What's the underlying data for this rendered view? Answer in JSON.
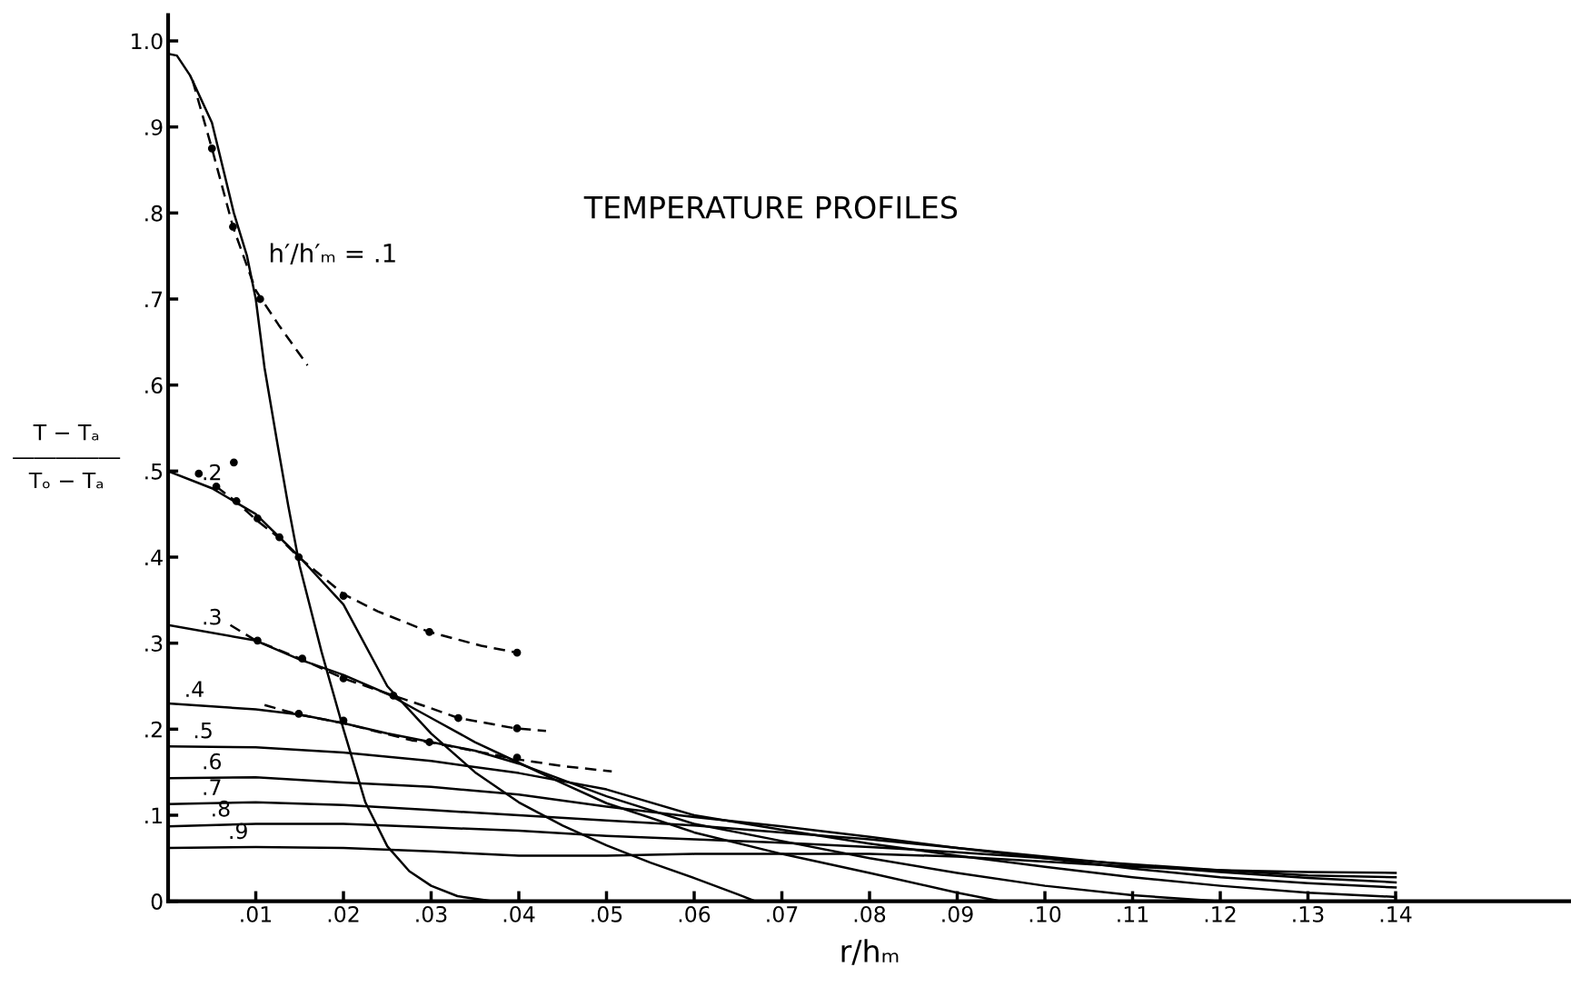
{
  "chart_data": {
    "type": "line",
    "title": "TEMPERATURE PROFILES",
    "xlabel": "r/hₘ",
    "ylabel": "T − Tₐ\n―――――\nTₒ − Tₐ",
    "xlim": [
      0,
      0.16
    ],
    "ylim": [
      0,
      1.03
    ],
    "xticks": [
      {
        "value": 0.01,
        "label": ".01"
      },
      {
        "value": 0.02,
        "label": ".02"
      },
      {
        "value": 0.03,
        "label": ".03"
      },
      {
        "value": 0.04,
        "label": ".04"
      },
      {
        "value": 0.05,
        "label": ".05"
      },
      {
        "value": 0.06,
        "label": ".06"
      },
      {
        "value": 0.07,
        "label": ".07"
      },
      {
        "value": 0.08,
        "label": ".08"
      },
      {
        "value": 0.09,
        "label": ".09"
      },
      {
        "value": 0.1,
        "label": ".10"
      },
      {
        "value": 0.11,
        "label": ".11"
      },
      {
        "value": 0.12,
        "label": ".12"
      },
      {
        "value": 0.13,
        "label": ".13"
      },
      {
        "value": 0.14,
        "label": ".14"
      }
    ],
    "yticks": [
      0,
      {
        "value": 0.1,
        "label": ".1"
      },
      {
        "value": 0.2,
        "label": ".2"
      },
      {
        "value": 0.3,
        "label": ".3"
      },
      {
        "value": 0.4,
        "label": ".4"
      },
      {
        "value": 0.5,
        "label": ".5"
      },
      {
        "value": 0.6,
        "label": ".6"
      },
      {
        "value": 0.7,
        "label": ".7"
      },
      {
        "value": 0.8,
        "label": ".8"
      },
      {
        "value": 0.9,
        "label": ".9"
      },
      {
        "value": 1.0,
        "label": "1.0"
      }
    ],
    "grid": false,
    "marker": "none",
    "line_style": "solid",
    "series": [
      {
        "color": "#000000",
        "x": [
          0,
          0.001,
          0.0025,
          0.005,
          0.0075,
          0.009,
          0.01,
          0.011,
          0.0125,
          0.0137,
          0.015,
          0.0175,
          0.02,
          0.0225,
          0.025,
          0.0275,
          0.03,
          0.033,
          0.037
        ],
        "values": [
          0.985,
          0.983,
          0.96,
          0.905,
          0.8,
          0.75,
          0.7,
          0.62,
          0.53,
          0.46,
          0.39,
          0.29,
          0.2,
          0.115,
          0.064,
          0.035,
          0.018,
          0.006,
          0
        ]
      },
      {
        "color": "#000000",
        "x": [
          0,
          0.005,
          0.01,
          0.015,
          0.02,
          0.025,
          0.03,
          0.035,
          0.04,
          0.045,
          0.05,
          0.055,
          0.06,
          0.065,
          0.067
        ],
        "values": [
          0.5,
          0.48,
          0.45,
          0.4,
          0.345,
          0.25,
          0.195,
          0.15,
          0.115,
          0.088,
          0.065,
          0.045,
          0.027,
          0.008,
          0
        ]
      },
      {
        "color": "#000000",
        "x": [
          0,
          0.01,
          0.015,
          0.02,
          0.025,
          0.03,
          0.035,
          0.04,
          0.045,
          0.05,
          0.06,
          0.07,
          0.08,
          0.09,
          0.095
        ],
        "values": [
          0.321,
          0.303,
          0.281,
          0.263,
          0.241,
          0.213,
          0.185,
          0.161,
          0.137,
          0.114,
          0.08,
          0.055,
          0.033,
          0.01,
          0
        ]
      },
      {
        "color": "#000000",
        "x": [
          0,
          0.01,
          0.015,
          0.02,
          0.025,
          0.03,
          0.035,
          0.04,
          0.045,
          0.05,
          0.06,
          0.07,
          0.08,
          0.09,
          0.1,
          0.11,
          0.12
        ],
        "values": [
          0.23,
          0.223,
          0.217,
          0.207,
          0.195,
          0.185,
          0.175,
          0.16,
          0.141,
          0.122,
          0.09,
          0.07,
          0.05,
          0.033,
          0.018,
          0.007,
          0
        ]
      },
      {
        "color": "#000000",
        "x": [
          0,
          0.01,
          0.02,
          0.03,
          0.04,
          0.05,
          0.06,
          0.07,
          0.08,
          0.09,
          0.1,
          0.11,
          0.12,
          0.13,
          0.14
        ],
        "values": [
          0.18,
          0.179,
          0.173,
          0.163,
          0.149,
          0.13,
          0.1,
          0.083,
          0.067,
          0.053,
          0.04,
          0.028,
          0.018,
          0.01,
          0.005
        ]
      },
      {
        "color": "#000000",
        "x": [
          0,
          0.01,
          0.02,
          0.03,
          0.04,
          0.05,
          0.06,
          0.07,
          0.08,
          0.09,
          0.1,
          0.11,
          0.12,
          0.13,
          0.14
        ],
        "values": [
          0.143,
          0.144,
          0.138,
          0.133,
          0.124,
          0.11,
          0.098,
          0.087,
          0.075,
          0.062,
          0.05,
          0.038,
          0.028,
          0.021,
          0.016
        ]
      },
      {
        "color": "#000000",
        "x": [
          0,
          0.01,
          0.02,
          0.03,
          0.04,
          0.05,
          0.06,
          0.07,
          0.08,
          0.09,
          0.1,
          0.11,
          0.12,
          0.13,
          0.14
        ],
        "values": [
          0.113,
          0.115,
          0.112,
          0.106,
          0.1,
          0.094,
          0.088,
          0.08,
          0.072,
          0.062,
          0.052,
          0.042,
          0.034,
          0.027,
          0.022
        ]
      },
      {
        "color": "#000000",
        "x": [
          0,
          0.01,
          0.02,
          0.03,
          0.04,
          0.05,
          0.06,
          0.07,
          0.08,
          0.09,
          0.1,
          0.11,
          0.12,
          0.13,
          0.14
        ],
        "values": [
          0.087,
          0.09,
          0.09,
          0.086,
          0.082,
          0.076,
          0.072,
          0.068,
          0.063,
          0.057,
          0.05,
          0.043,
          0.036,
          0.03,
          0.028
        ]
      },
      {
        "color": "#000000",
        "x": [
          0,
          0.01,
          0.02,
          0.03,
          0.04,
          0.05,
          0.06,
          0.07,
          0.08,
          0.09,
          0.1,
          0.11,
          0.12,
          0.13,
          0.14
        ],
        "values": [
          0.062,
          0.063,
          0.062,
          0.058,
          0.053,
          0.053,
          0.055,
          0.055,
          0.055,
          0.052,
          0.046,
          0.04,
          0.036,
          0.034,
          0.033
        ]
      },
      {
        "color": "#000000",
        "line_style": "dashed",
        "x": [
          0.0028,
          0.005,
          0.0074,
          0.01,
          0.0126,
          0.0159
        ],
        "values": [
          0.954,
          0.875,
          0.784,
          0.71,
          0.67,
          0.623
        ]
      },
      {
        "color": "#000000",
        "line_style": "dashed",
        "x": [
          0.0055,
          0.0078,
          0.0102,
          0.0127,
          0.0149,
          0.02,
          0.0239,
          0.0298,
          0.0357,
          0.0398
        ],
        "values": [
          0.482,
          0.464,
          0.442,
          0.422,
          0.4,
          0.357,
          0.337,
          0.313,
          0.297,
          0.289
        ]
      },
      {
        "color": "#000000",
        "line_style": "dashed",
        "x": [
          0.0071,
          0.01,
          0.0153,
          0.02,
          0.0257,
          0.0298,
          0.0331,
          0.0396,
          0.0431
        ],
        "values": [
          0.321,
          0.303,
          0.281,
          0.259,
          0.239,
          0.225,
          0.213,
          0.201,
          0.198
        ]
      },
      {
        "color": "#000000",
        "line_style": "dashed",
        "x": [
          0.011,
          0.0149,
          0.02,
          0.0278,
          0.0298,
          0.0398,
          0.0451,
          0.0506
        ],
        "values": [
          0.228,
          0.217,
          0.207,
          0.187,
          0.185,
          0.165,
          0.157,
          0.151
        ]
      },
      {
        "type": "scatter",
        "color": "#000000",
        "marker": "circle",
        "x": [
          0.005,
          0.0074,
          0.0105,
          0.0035,
          0.0075,
          0.0055,
          0.0078,
          0.0102,
          0.0127,
          0.0149,
          0.02,
          0.0298,
          0.0398,
          0.0102,
          0.0153,
          0.02,
          0.0257,
          0.0331,
          0.0398,
          0.0149,
          0.02,
          0.0298,
          0.0398
        ],
        "values": [
          0.875,
          0.784,
          0.7,
          0.497,
          0.51,
          0.482,
          0.465,
          0.445,
          0.423,
          0.4,
          0.355,
          0.313,
          0.289,
          0.303,
          0.282,
          0.259,
          0.239,
          0.213,
          0.201,
          0.218,
          0.21,
          0.185,
          0.167
        ]
      }
    ],
    "annotations": [
      {
        "text": "h′/h′ₘ = .1",
        "x": 0.01,
        "y": 0.7
      },
      {
        "text": ".2",
        "x": 0.005,
        "y": 0.48
      },
      {
        "text": ".3",
        "x": 0.005,
        "y": 0.312
      },
      {
        "text": ".4",
        "x": 0.003,
        "y": 0.228
      },
      {
        "text": ".5",
        "x": 0.004,
        "y": 0.18
      },
      {
        "text": ".6",
        "x": 0.005,
        "y": 0.144
      },
      {
        "text": ".7",
        "x": 0.005,
        "y": 0.114
      },
      {
        "text": ".8",
        "x": 0.006,
        "y": 0.089
      },
      {
        "text": ".9",
        "x": 0.008,
        "y": 0.063
      }
    ]
  }
}
